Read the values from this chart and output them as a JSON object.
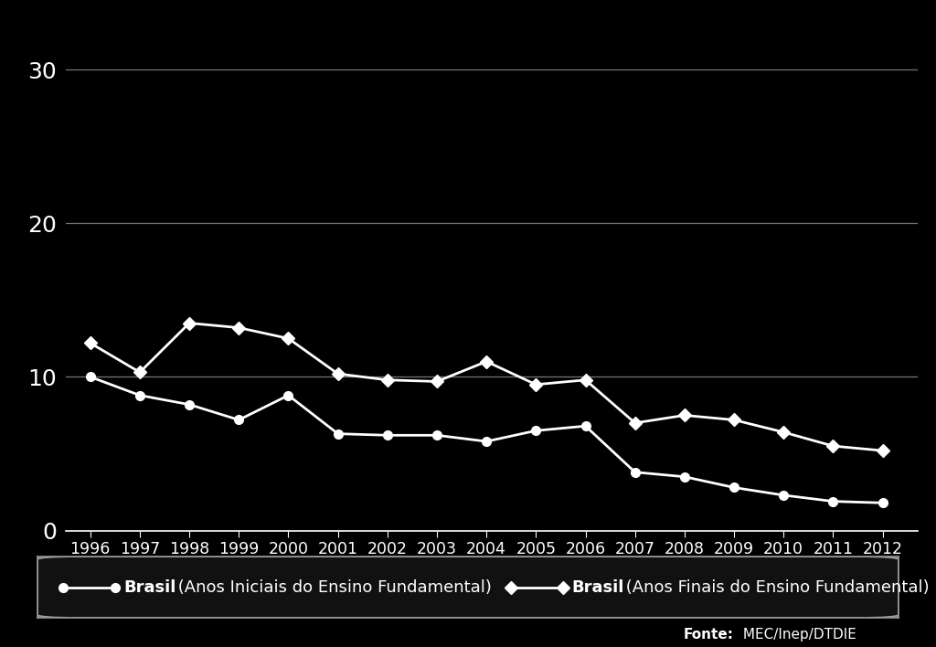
{
  "years": [
    1996,
    1997,
    1998,
    1999,
    2000,
    2001,
    2002,
    2003,
    2004,
    2005,
    2006,
    2007,
    2008,
    2009,
    2010,
    2011,
    2012
  ],
  "series1_label_bold": "Brasil",
  "series1_label_rest": " (Anos Iniciais do Ensino Fundamental)",
  "series1_values": [
    10.0,
    8.8,
    8.2,
    7.2,
    8.8,
    6.3,
    6.2,
    6.2,
    5.8,
    6.5,
    6.8,
    3.8,
    3.5,
    2.8,
    2.3,
    1.9,
    1.8
  ],
  "series2_label_bold": "Brasil",
  "series2_label_rest": " (Anos Finais do Ensino Fundamental)",
  "series2_values": [
    12.2,
    10.3,
    13.5,
    13.2,
    12.5,
    10.2,
    9.8,
    9.7,
    11.0,
    9.5,
    9.8,
    7.0,
    7.5,
    7.2,
    6.4,
    5.5,
    5.2
  ],
  "ylim": [
    0,
    32
  ],
  "yticks": [
    0,
    10,
    20,
    30
  ],
  "background_color": "#000000",
  "line_color": "#ffffff",
  "text_color": "#ffffff",
  "grid_color": "#777777",
  "fonte_bold": "Fonte:",
  "fonte_rest": " MEC/Inep/DTDIE",
  "legend_bg": "#111111",
  "legend_border": "#999999"
}
